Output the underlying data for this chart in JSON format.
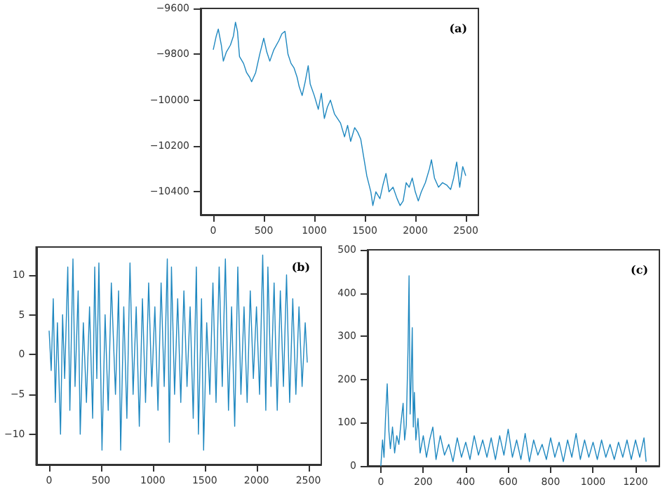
{
  "chart_data": [
    {
      "type": "line",
      "annotations": [
        "(a)"
      ],
      "xlim": [
        -125,
        2625
      ],
      "xticks": [
        0,
        500,
        1000,
        1500,
        2000,
        2500
      ],
      "ylim": [
        -10500,
        -9600
      ],
      "yticks": [
        {
          "value": -10400,
          "label": "−10400"
        },
        {
          "value": -10200,
          "label": "−10200"
        },
        {
          "value": -10000,
          "label": "−10000"
        },
        {
          "value": -9800,
          "label": "−9800"
        },
        {
          "value": -9600,
          "label": "−9600"
        }
      ],
      "line_style": "solid",
      "series": [
        {
          "color": "#1f88c0",
          "x": [
            0,
            30,
            50,
            80,
            100,
            130,
            170,
            200,
            220,
            240,
            260,
            300,
            330,
            360,
            380,
            420,
            460,
            500,
            530,
            560,
            600,
            650,
            680,
            710,
            740,
            770,
            800,
            830,
            850,
            880,
            910,
            940,
            960,
            1000,
            1040,
            1070,
            1100,
            1130,
            1160,
            1200,
            1230,
            1260,
            1300,
            1330,
            1360,
            1400,
            1430,
            1460,
            1490,
            1520,
            1560,
            1580,
            1610,
            1650,
            1680,
            1710,
            1740,
            1780,
            1820,
            1850,
            1880,
            1910,
            1940,
            1970,
            2000,
            2030,
            2060,
            2100,
            2140,
            2160,
            2190,
            2230,
            2270,
            2310,
            2350,
            2380,
            2410,
            2440,
            2470,
            2500
          ],
          "values": [
            -9780,
            -9720,
            -9690,
            -9760,
            -9830,
            -9790,
            -9760,
            -9720,
            -9660,
            -9700,
            -9810,
            -9840,
            -9880,
            -9900,
            -9920,
            -9880,
            -9800,
            -9730,
            -9790,
            -9830,
            -9780,
            -9740,
            -9710,
            -9700,
            -9800,
            -9840,
            -9860,
            -9900,
            -9940,
            -9980,
            -9920,
            -9850,
            -9930,
            -9980,
            -10040,
            -9970,
            -10080,
            -10030,
            -10000,
            -10060,
            -10080,
            -10100,
            -10160,
            -10110,
            -10180,
            -10120,
            -10140,
            -10170,
            -10250,
            -10330,
            -10400,
            -10460,
            -10400,
            -10430,
            -10370,
            -10320,
            -10400,
            -10380,
            -10430,
            -10460,
            -10440,
            -10360,
            -10380,
            -10340,
            -10400,
            -10440,
            -10400,
            -10360,
            -10300,
            -10260,
            -10340,
            -10380,
            -10360,
            -10370,
            -10390,
            -10340,
            -10270,
            -10380,
            -10290,
            -10330
          ]
        }
      ]
    },
    {
      "type": "line",
      "annotations": [
        "(b)"
      ],
      "xlim": [
        -125,
        2625
      ],
      "xticks": [
        0,
        500,
        1000,
        1500,
        2000,
        2500
      ],
      "ylim": [
        -13.8,
        13.5
      ],
      "yticks": [
        {
          "value": -10,
          "label": "−10"
        },
        {
          "value": -5,
          "label": "−5"
        },
        0,
        5,
        10
      ],
      "line_style": "solid",
      "series": [
        {
          "color": "#1f88c0",
          "x": [
            0,
            20,
            40,
            60,
            80,
            110,
            130,
            150,
            180,
            200,
            230,
            250,
            280,
            300,
            330,
            360,
            390,
            420,
            440,
            460,
            480,
            510,
            540,
            570,
            600,
            640,
            670,
            690,
            720,
            750,
            780,
            810,
            840,
            870,
            900,
            930,
            960,
            990,
            1020,
            1050,
            1080,
            1110,
            1140,
            1160,
            1180,
            1210,
            1240,
            1270,
            1300,
            1330,
            1360,
            1390,
            1420,
            1440,
            1470,
            1490,
            1520,
            1550,
            1580,
            1610,
            1640,
            1670,
            1700,
            1730,
            1760,
            1790,
            1820,
            1850,
            1880,
            1910,
            1940,
            1970,
            2000,
            2030,
            2060,
            2090,
            2110,
            2140,
            2170,
            2200,
            2230,
            2260,
            2290,
            2320,
            2350,
            2380,
            2410,
            2440,
            2470,
            2490
          ],
          "values": [
            3,
            -2,
            7,
            -6,
            4,
            -10,
            5,
            -3,
            11,
            -7,
            12,
            -4,
            8,
            -10,
            4,
            -6,
            6,
            -8,
            11,
            -3,
            11.5,
            -12,
            5,
            -7,
            9,
            -5,
            8,
            -12,
            6,
            -8,
            11.5,
            -5,
            6,
            -9,
            7,
            -6,
            9,
            -4,
            6,
            -7,
            9,
            -4,
            12,
            -11,
            11,
            -5,
            7,
            -6,
            8,
            -4,
            6,
            -8,
            11,
            -10,
            7,
            -12,
            4,
            -5,
            9,
            -6,
            11,
            -4,
            12,
            -7,
            6,
            -9,
            11,
            -5,
            6,
            -6,
            8,
            -3,
            6,
            -5,
            12.5,
            -7,
            11,
            -4,
            9,
            -7,
            8,
            -4,
            10,
            -6,
            7,
            -5,
            6,
            -4,
            4,
            -1
          ]
        }
      ]
    },
    {
      "type": "line",
      "annotations": [
        "(c)"
      ],
      "xlim": [
        -62.5,
        1312.5
      ],
      "xticks": [
        0,
        200,
        400,
        600,
        800,
        1000,
        1200
      ],
      "ylim": [
        0,
        500
      ],
      "yticks": [
        0,
        100,
        200,
        300,
        400,
        500
      ],
      "line_style": "solid",
      "series": [
        {
          "color": "#1f88c0",
          "x": [
            0,
            8,
            15,
            22,
            30,
            38,
            45,
            55,
            65,
            75,
            85,
            95,
            105,
            112,
            120,
            128,
            133,
            138,
            143,
            148,
            153,
            158,
            165,
            175,
            185,
            200,
            215,
            230,
            245,
            260,
            280,
            300,
            320,
            340,
            360,
            380,
            400,
            420,
            440,
            460,
            480,
            500,
            520,
            540,
            560,
            580,
            600,
            620,
            640,
            660,
            680,
            700,
            720,
            740,
            760,
            780,
            800,
            820,
            840,
            860,
            880,
            900,
            920,
            940,
            960,
            980,
            1000,
            1020,
            1040,
            1060,
            1080,
            1100,
            1120,
            1140,
            1160,
            1180,
            1200,
            1220,
            1240,
            1250
          ],
          "values": [
            0,
            60,
            20,
            110,
            190,
            80,
            40,
            90,
            30,
            70,
            50,
            100,
            145,
            60,
            95,
            270,
            440,
            120,
            200,
            320,
            90,
            170,
            60,
            110,
            30,
            70,
            20,
            60,
            90,
            15,
            70,
            25,
            50,
            10,
            65,
            20,
            55,
            15,
            70,
            25,
            60,
            20,
            65,
            15,
            70,
            25,
            85,
            20,
            60,
            15,
            75,
            10,
            60,
            25,
            50,
            15,
            65,
            20,
            55,
            10,
            60,
            20,
            75,
            15,
            60,
            20,
            55,
            15,
            60,
            20,
            50,
            15,
            55,
            20,
            60,
            15,
            60,
            20,
            65,
            10
          ]
        }
      ]
    }
  ]
}
